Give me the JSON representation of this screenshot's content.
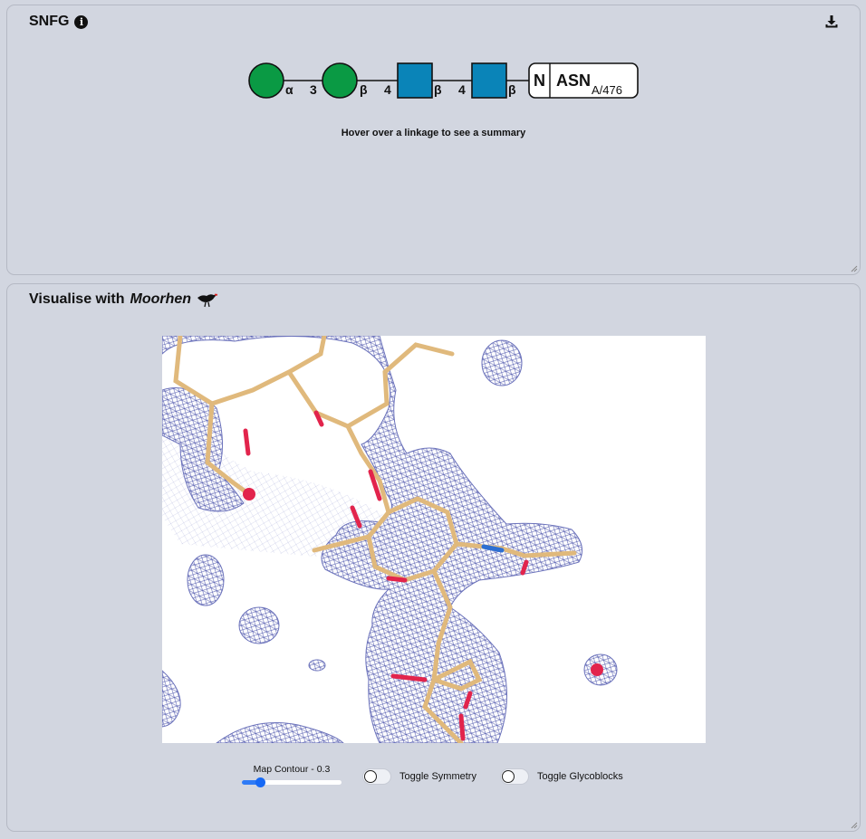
{
  "snfg_panel": {
    "title": "SNFG",
    "hint": "Hover over a linkage to see a summary",
    "glycan": {
      "residues": [
        {
          "shape": "circle",
          "color": "#0a9a44",
          "name": "Man"
        },
        {
          "shape": "circle",
          "color": "#0a9a44",
          "name": "Man"
        },
        {
          "shape": "square",
          "color": "#0a84b8",
          "name": "GlcNAc"
        },
        {
          "shape": "square",
          "color": "#0a84b8",
          "name": "GlcNAc"
        }
      ],
      "linkages": [
        {
          "anomer": "α",
          "position": "3"
        },
        {
          "anomer": "β",
          "position": "4"
        },
        {
          "anomer": "β",
          "position": "4"
        },
        {
          "anomer": "β",
          "position": ""
        }
      ],
      "attachment": {
        "type": "N",
        "residue": "ASN",
        "chain_pos": "A/476"
      }
    }
  },
  "moorhen_panel": {
    "title_prefix": "Visualise with",
    "title_app": "Moorhen",
    "controls": {
      "map_contour_label": "Map Contour - 0.3",
      "map_contour_value": 0.3,
      "map_contour_fraction": 0.15,
      "symmetry_label": "Toggle Symmetry",
      "symmetry_on": false,
      "glycoblocks_label": "Toggle Glycoblocks",
      "glycoblocks_on": false
    }
  },
  "colors": {
    "panel_bg": "#d2d6e0",
    "mesh": "#4a52a8",
    "carbon": "#e0b97c",
    "oxygen": "#e2244c",
    "nitrogen": "#2d6fd2",
    "accent": "#1769f5"
  },
  "icons": {
    "info": "info-icon",
    "download": "download-icon",
    "bird": "moorhen-bird-icon"
  }
}
